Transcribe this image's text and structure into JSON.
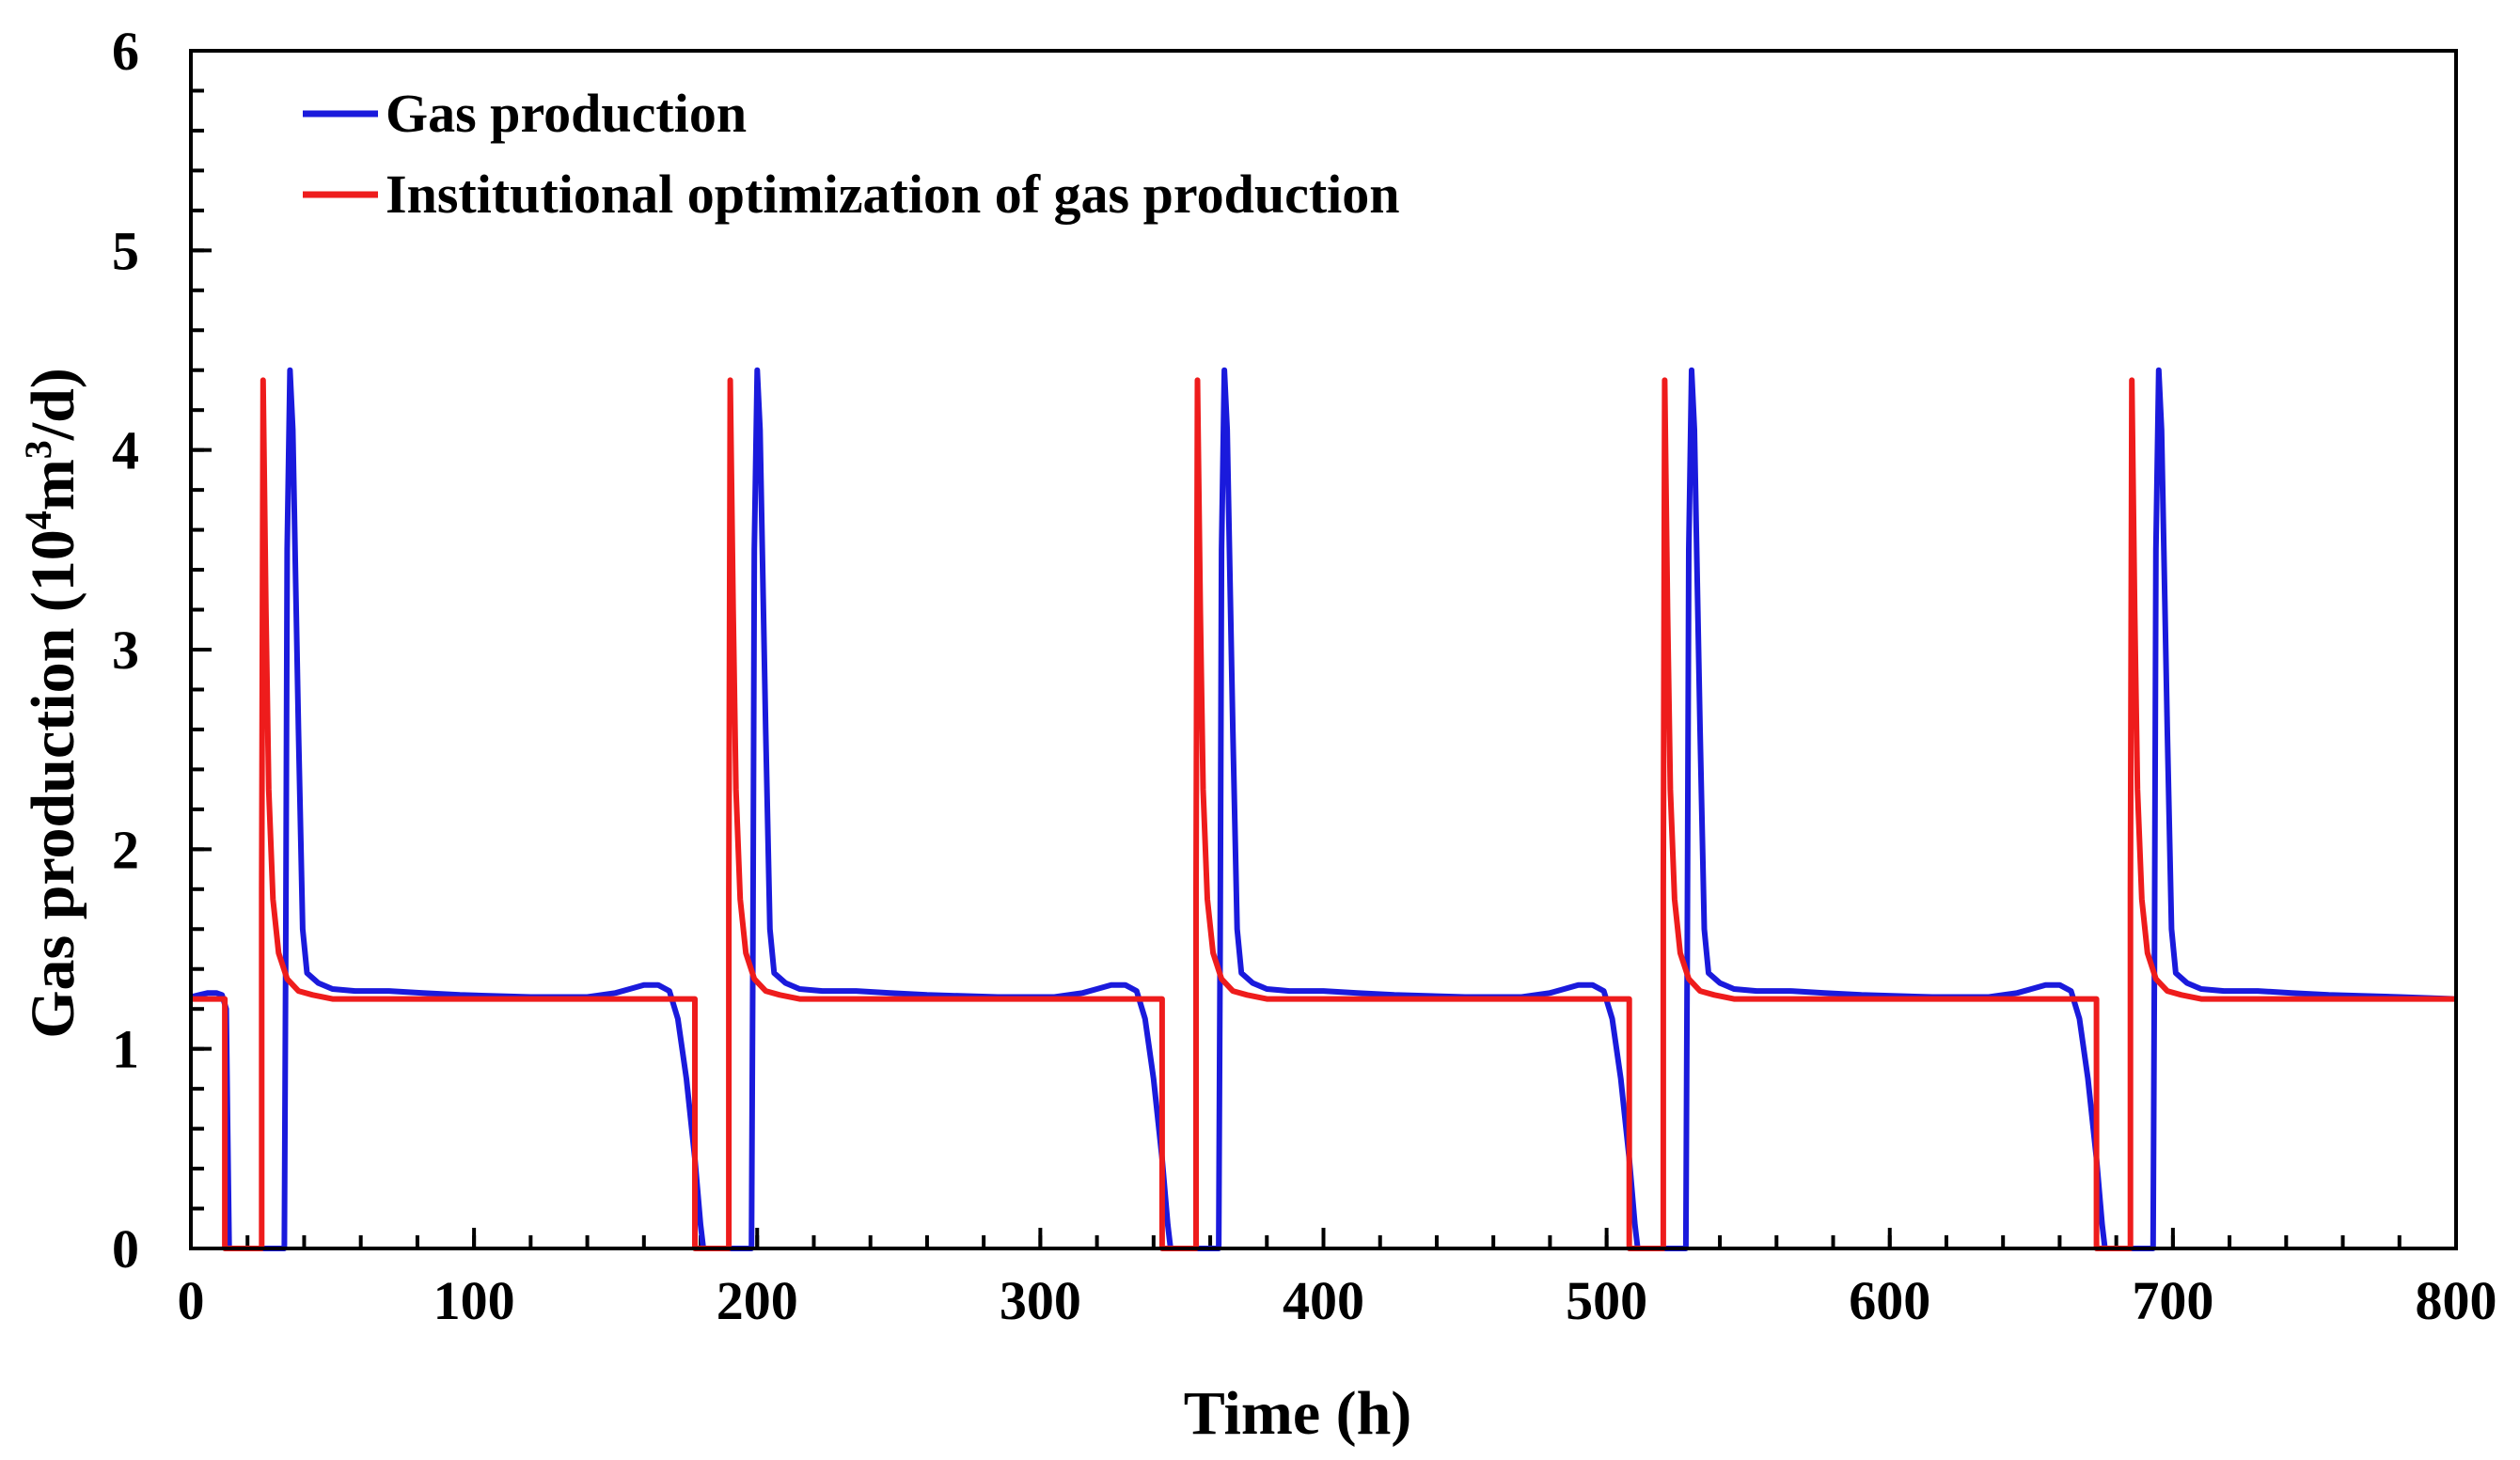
{
  "chart_data": {
    "type": "line",
    "xlabel": "Time (h)",
    "ylabel": {
      "prefix": "Gas production (10",
      "sup1": "4",
      "mid": "m",
      "sup2": "3",
      "suffix": "/d)"
    },
    "xlim": [
      0,
      800
    ],
    "ylim": [
      0,
      6
    ],
    "xticks": [
      0,
      100,
      200,
      300,
      400,
      500,
      600,
      700,
      800
    ],
    "yticks": [
      0,
      1,
      2,
      3,
      4,
      5,
      6
    ],
    "x_minor_step": 20,
    "y_minor_step": 0.2,
    "legend_position": "top-left",
    "series": [
      {
        "name": "Gas production",
        "color": "#1a1adc",
        "points": [
          [
            0,
            1.26
          ],
          [
            3,
            1.27
          ],
          [
            6,
            1.28
          ],
          [
            9,
            1.28
          ],
          [
            11,
            1.27
          ],
          [
            12.5,
            1.2
          ],
          [
            13,
            0.6
          ],
          [
            13.5,
            0
          ],
          [
            33,
            0
          ],
          [
            33.5,
            1.5
          ],
          [
            34,
            3.5
          ],
          [
            35,
            4.4
          ],
          [
            36,
            4.1
          ],
          [
            38,
            2.6
          ],
          [
            39.5,
            1.6
          ],
          [
            41,
            1.38
          ],
          [
            45,
            1.33
          ],
          [
            50,
            1.3
          ],
          [
            58,
            1.29
          ],
          [
            70,
            1.29
          ],
          [
            82,
            1.28
          ],
          [
            95,
            1.27
          ],
          [
            120,
            1.26
          ],
          [
            140,
            1.26
          ],
          [
            150,
            1.28
          ],
          [
            155,
            1.3
          ],
          [
            160,
            1.32
          ],
          [
            165,
            1.32
          ],
          [
            169,
            1.29
          ],
          [
            172,
            1.15
          ],
          [
            175,
            0.85
          ],
          [
            178,
            0.45
          ],
          [
            180,
            0.12
          ],
          [
            181,
            0
          ],
          [
            198,
            0
          ],
          [
            198.5,
            1.5
          ],
          [
            199,
            3.5
          ],
          [
            200,
            4.4
          ],
          [
            201,
            4.1
          ],
          [
            203,
            2.6
          ],
          [
            204.5,
            1.6
          ],
          [
            206,
            1.38
          ],
          [
            210,
            1.33
          ],
          [
            215,
            1.3
          ],
          [
            223,
            1.29
          ],
          [
            235,
            1.29
          ],
          [
            247,
            1.28
          ],
          [
            260,
            1.27
          ],
          [
            285,
            1.26
          ],
          [
            305,
            1.26
          ],
          [
            315,
            1.28
          ],
          [
            320,
            1.3
          ],
          [
            325,
            1.32
          ],
          [
            330,
            1.32
          ],
          [
            334,
            1.29
          ],
          [
            337,
            1.15
          ],
          [
            340,
            0.85
          ],
          [
            343,
            0.45
          ],
          [
            345,
            0.12
          ],
          [
            346,
            0
          ],
          [
            363,
            0
          ],
          [
            363.5,
            1.5
          ],
          [
            364,
            3.5
          ],
          [
            365,
            4.4
          ],
          [
            366,
            4.1
          ],
          [
            368,
            2.6
          ],
          [
            369.5,
            1.6
          ],
          [
            371,
            1.38
          ],
          [
            375,
            1.33
          ],
          [
            380,
            1.3
          ],
          [
            388,
            1.29
          ],
          [
            400,
            1.29
          ],
          [
            412,
            1.28
          ],
          [
            425,
            1.27
          ],
          [
            450,
            1.26
          ],
          [
            470,
            1.26
          ],
          [
            480,
            1.28
          ],
          [
            485,
            1.3
          ],
          [
            490,
            1.32
          ],
          [
            495,
            1.32
          ],
          [
            499,
            1.29
          ],
          [
            502,
            1.15
          ],
          [
            505,
            0.85
          ],
          [
            508,
            0.45
          ],
          [
            510,
            0.12
          ],
          [
            511,
            0
          ],
          [
            528,
            0
          ],
          [
            528.5,
            1.5
          ],
          [
            529,
            3.5
          ],
          [
            530,
            4.4
          ],
          [
            531,
            4.1
          ],
          [
            533,
            2.6
          ],
          [
            534.5,
            1.6
          ],
          [
            536,
            1.38
          ],
          [
            540,
            1.33
          ],
          [
            545,
            1.3
          ],
          [
            553,
            1.29
          ],
          [
            565,
            1.29
          ],
          [
            577,
            1.28
          ],
          [
            590,
            1.27
          ],
          [
            615,
            1.26
          ],
          [
            635,
            1.26
          ],
          [
            645,
            1.28
          ],
          [
            650,
            1.3
          ],
          [
            655,
            1.32
          ],
          [
            660,
            1.32
          ],
          [
            664,
            1.29
          ],
          [
            667,
            1.15
          ],
          [
            670,
            0.85
          ],
          [
            673,
            0.45
          ],
          [
            675,
            0.12
          ],
          [
            676,
            0
          ],
          [
            693,
            0
          ],
          [
            693.5,
            1.5
          ],
          [
            694,
            3.5
          ],
          [
            695,
            4.4
          ],
          [
            696,
            4.1
          ],
          [
            698,
            2.6
          ],
          [
            699.5,
            1.6
          ],
          [
            701,
            1.38
          ],
          [
            705,
            1.33
          ],
          [
            710,
            1.3
          ],
          [
            718,
            1.29
          ],
          [
            730,
            1.29
          ],
          [
            742,
            1.28
          ],
          [
            755,
            1.27
          ],
          [
            780,
            1.26
          ],
          [
            800,
            1.25
          ]
        ]
      },
      {
        "name": "Institutional optimization of gas production",
        "color": "#ee1c1c",
        "points": [
          [
            0,
            1.25
          ],
          [
            12,
            1.25
          ],
          [
            12,
            0
          ],
          [
            25,
            0
          ],
          [
            25,
            1.8
          ],
          [
            25.5,
            4.35
          ],
          [
            26.5,
            3.2
          ],
          [
            27.5,
            2.3
          ],
          [
            29,
            1.75
          ],
          [
            31,
            1.48
          ],
          [
            34,
            1.35
          ],
          [
            38,
            1.29
          ],
          [
            43,
            1.27
          ],
          [
            50,
            1.25
          ],
          [
            178,
            1.25
          ],
          [
            178,
            0
          ],
          [
            190,
            0
          ],
          [
            190,
            1.8
          ],
          [
            190.5,
            4.35
          ],
          [
            191.5,
            3.2
          ],
          [
            192.5,
            2.3
          ],
          [
            194,
            1.75
          ],
          [
            196,
            1.48
          ],
          [
            199,
            1.35
          ],
          [
            203,
            1.29
          ],
          [
            208,
            1.27
          ],
          [
            215,
            1.25
          ],
          [
            343,
            1.25
          ],
          [
            343,
            0
          ],
          [
            355,
            0
          ],
          [
            355,
            1.8
          ],
          [
            355.5,
            4.35
          ],
          [
            356.5,
            3.2
          ],
          [
            357.5,
            2.3
          ],
          [
            359,
            1.75
          ],
          [
            361,
            1.48
          ],
          [
            364,
            1.35
          ],
          [
            368,
            1.29
          ],
          [
            373,
            1.27
          ],
          [
            380,
            1.25
          ],
          [
            508,
            1.25
          ],
          [
            508,
            0
          ],
          [
            520,
            0
          ],
          [
            520,
            1.8
          ],
          [
            520.5,
            4.35
          ],
          [
            521.5,
            3.2
          ],
          [
            522.5,
            2.3
          ],
          [
            524,
            1.75
          ],
          [
            526,
            1.48
          ],
          [
            529,
            1.35
          ],
          [
            533,
            1.29
          ],
          [
            538,
            1.27
          ],
          [
            545,
            1.25
          ],
          [
            673,
            1.25
          ],
          [
            673,
            0
          ],
          [
            685,
            0
          ],
          [
            685,
            1.8
          ],
          [
            685.5,
            4.35
          ],
          [
            686.5,
            3.2
          ],
          [
            687.5,
            2.3
          ],
          [
            689,
            1.75
          ],
          [
            691,
            1.48
          ],
          [
            694,
            1.35
          ],
          [
            698,
            1.29
          ],
          [
            703,
            1.27
          ],
          [
            710,
            1.25
          ],
          [
            800,
            1.25
          ]
        ]
      }
    ]
  }
}
